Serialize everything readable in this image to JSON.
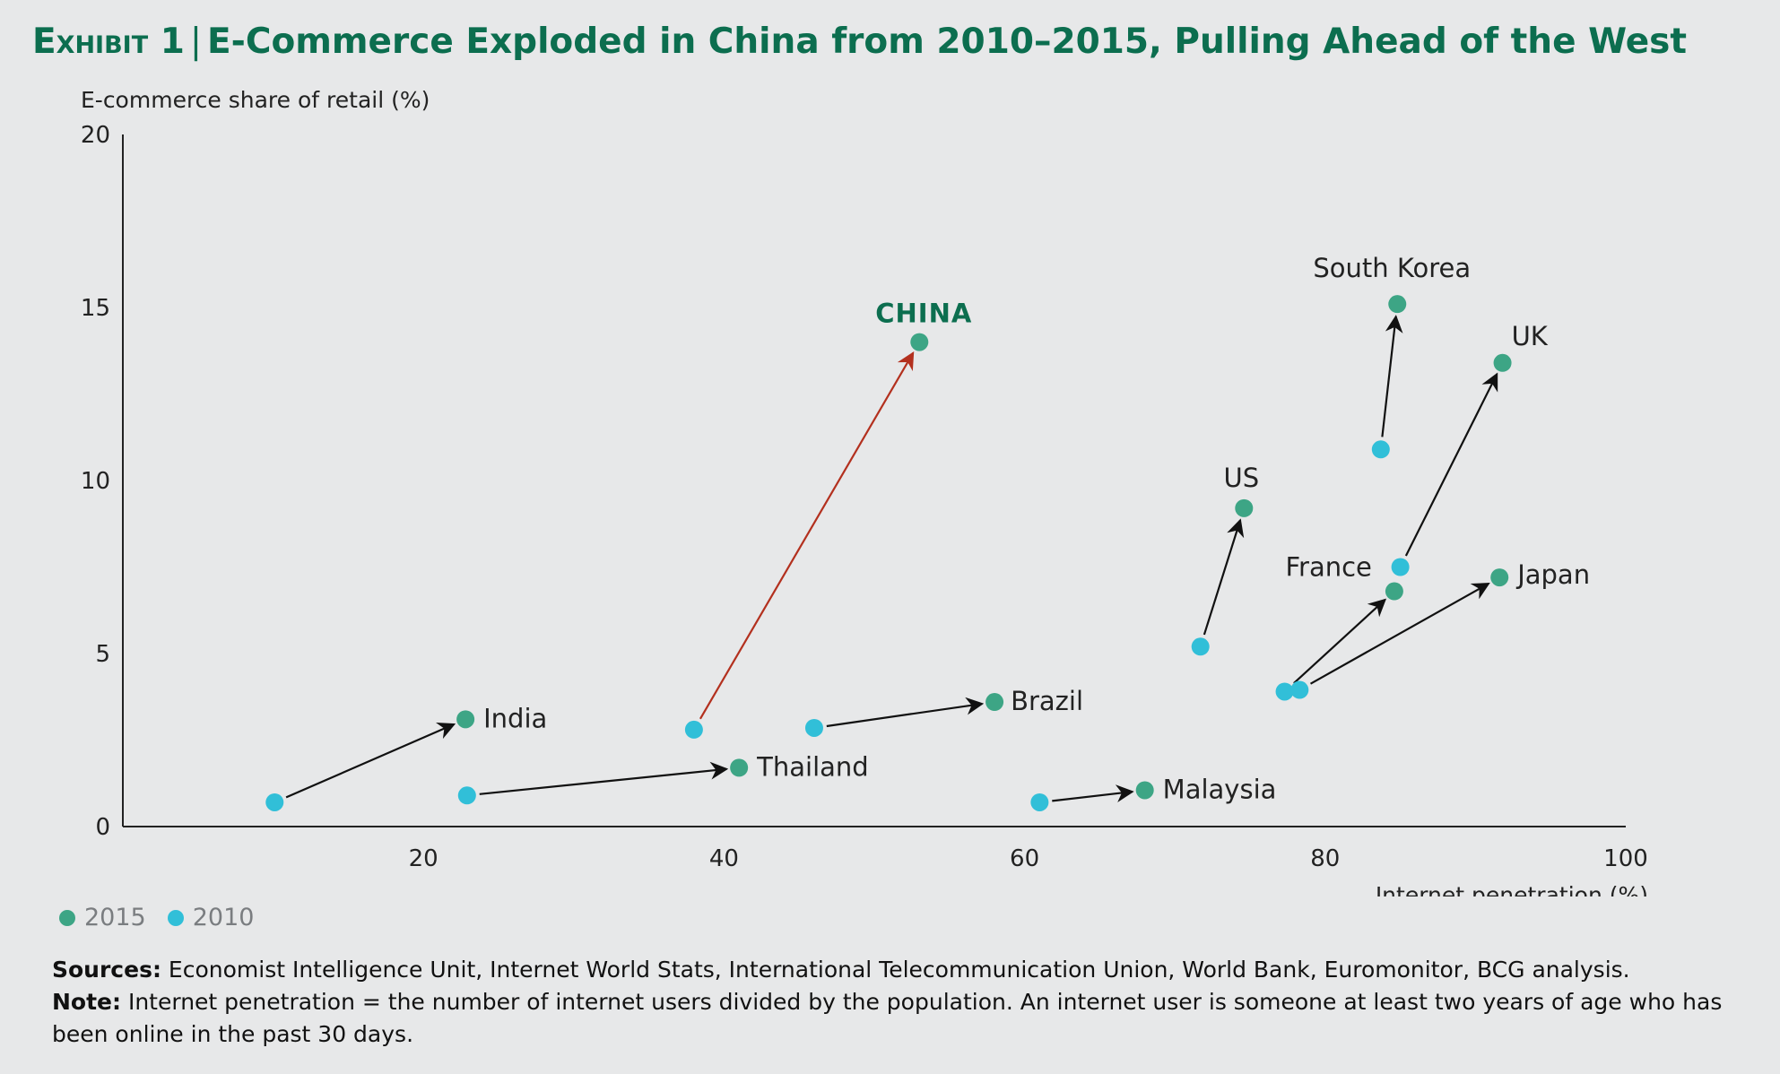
{
  "header": {
    "exhibit": "Exhibit 1",
    "separator": "|",
    "title": "E-Commerce Exploded in China from 2010–2015, Pulling Ahead of the West"
  },
  "chart_data": {
    "type": "scatter",
    "ylabel": "E-commerce share of retail (%)",
    "xlabel": "Internet penetration (%)",
    "xlim": [
      0,
      100
    ],
    "ylim": [
      0,
      20
    ],
    "xticks": [
      20,
      40,
      60,
      80,
      100
    ],
    "yticks": [
      0,
      5,
      10,
      15,
      20
    ],
    "grid": false,
    "colors": {
      "2015": "#3da585",
      "2010": "#31bfd8",
      "arrow": "#111111",
      "china_arrow": "#b3301e",
      "china_label": "#0c6e4f"
    },
    "legend": [
      {
        "name": "2015",
        "color": "#3da585"
      },
      {
        "name": "2010",
        "color": "#31bfd8"
      }
    ],
    "legend_position": "bottom-left",
    "countries": [
      {
        "name": "India",
        "x2010": 10.1,
        "y2010": 0.7,
        "x2015": 22.8,
        "y2015": 3.1,
        "highlight": false
      },
      {
        "name": "Thailand",
        "x2010": 22.9,
        "y2010": 0.9,
        "x2015": 41.0,
        "y2015": 1.7,
        "highlight": false
      },
      {
        "name": "CHINA",
        "x2010": 38.0,
        "y2010": 2.8,
        "x2015": 53.0,
        "y2015": 14.0,
        "highlight": true
      },
      {
        "name": "Brazil",
        "x2010": 46.0,
        "y2010": 2.85,
        "x2015": 58.0,
        "y2015": 3.6,
        "highlight": false
      },
      {
        "name": "Malaysia",
        "x2010": 61.0,
        "y2010": 0.7,
        "x2015": 68.0,
        "y2015": 1.05,
        "highlight": false
      },
      {
        "name": "US",
        "x2010": 71.7,
        "y2010": 5.2,
        "x2015": 74.6,
        "y2015": 9.2,
        "highlight": false
      },
      {
        "name": "South Korea",
        "x2010": 83.7,
        "y2010": 10.9,
        "x2015": 84.8,
        "y2015": 15.1,
        "highlight": false
      },
      {
        "name": "UK",
        "x2010": 85.0,
        "y2010": 7.5,
        "x2015": 91.8,
        "y2015": 13.4,
        "highlight": false
      },
      {
        "name": "France",
        "x2010": 77.3,
        "y2010": 3.9,
        "x2015": 84.6,
        "y2015": 6.8,
        "highlight": false
      },
      {
        "name": "Japan",
        "x2010": 78.3,
        "y2010": 3.95,
        "x2015": 91.6,
        "y2015": 7.2,
        "highlight": false
      }
    ]
  },
  "legend": {
    "y2015": "2015",
    "y2010": "2010"
  },
  "notes": {
    "sources_label": "Sources:",
    "sources_text": " Economist Intelligence Unit, Internet World Stats, International Telecommunication Union, World Bank, Euromonitor, BCG analysis.",
    "note_label": "Note:",
    "note_text": " Internet penetration = the number of internet users divided by the population. An internet user is someone at least two years of age who has been online in the past 30 days."
  }
}
